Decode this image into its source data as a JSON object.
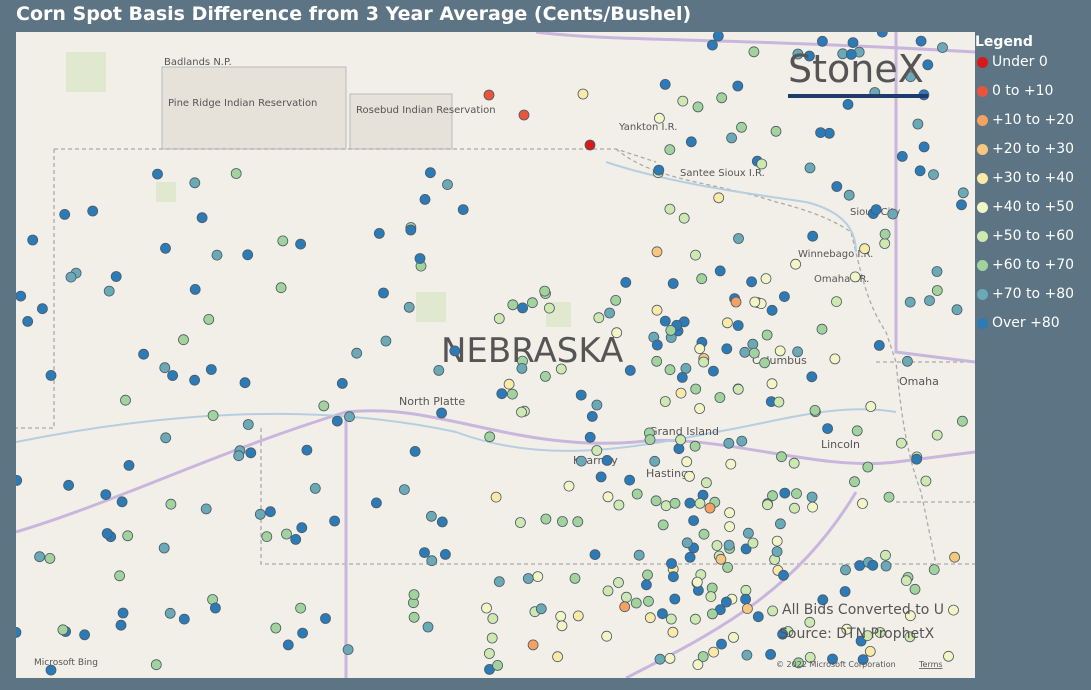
{
  "header": {
    "title": "Corn Spot Basis Difference from 3 Year Average (Cents/Bushel)"
  },
  "legend": {
    "title": "Legend",
    "items": [
      {
        "label": "Under 0",
        "color": "#d7191c"
      },
      {
        "label": "0 to +10",
        "color": "#e8553a"
      },
      {
        "label": "+10 to +20",
        "color": "#f4a261"
      },
      {
        "label": "+20 to +30",
        "color": "#f7c77e"
      },
      {
        "label": "+30 to +40",
        "color": "#fbe9a6"
      },
      {
        "label": "+40 to +50",
        "color": "#f3f5c4"
      },
      {
        "label": "+50 to +60",
        "color": "#cfe8b0"
      },
      {
        "label": "+60 to +70",
        "color": "#a3d39c"
      },
      {
        "label": "+70 to +80",
        "color": "#6aa9b5"
      },
      {
        "label": "Over +80",
        "color": "#2c7bb6"
      }
    ]
  },
  "map": {
    "labels": [
      "NEBRASKA",
      "Badlands N.P.",
      "Pine Ridge Indian Reservation",
      "Rosebud Indian Reservation",
      "Yankton I.R.",
      "Santee Sioux I.R.",
      "Sioux City",
      "Winnebago I.R.",
      "Omaha I.R.",
      "Columbus",
      "Omaha",
      "North Platte",
      "Grand Island",
      "Kearney",
      "Hastings",
      "Lincoln"
    ],
    "logo": "StoneX",
    "notes": [
      "All Bids Converted to U",
      "Source: DTN ProphetX"
    ],
    "attribution": "Microsoft Bing",
    "copyright": "© 2022 Microsoft Corporation",
    "terms": "Terms"
  }
}
